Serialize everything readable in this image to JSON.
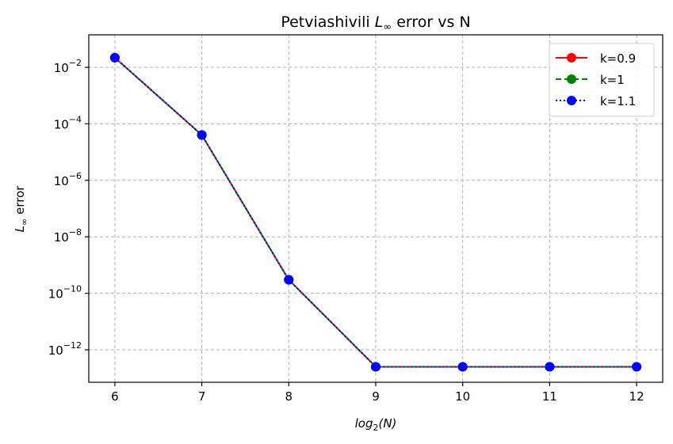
{
  "chart_data": {
    "type": "line",
    "title_prefix": "Petviashivili ",
    "title_math": "L",
    "title_math_sub": "∞",
    "title_suffix": " error vs N",
    "xlabel_base": "log",
    "xlabel_sub": "2",
    "xlabel_suffix": "(N)",
    "ylabel_math": "L",
    "ylabel_math_sub": "∞",
    "ylabel_suffix": " error",
    "yscale": "log",
    "xlim": [
      5.7,
      12.3
    ],
    "ylim_log10": [
      -13.15,
      -0.85
    ],
    "x": [
      6,
      7,
      8,
      9,
      10,
      11,
      12
    ],
    "x_ticks": [
      6,
      7,
      8,
      9,
      10,
      11,
      12
    ],
    "x_tick_labels": [
      "6",
      "7",
      "8",
      "9",
      "10",
      "11",
      "12"
    ],
    "y_tick_exponents": [
      -2,
      -4,
      -6,
      -8,
      -10,
      -12
    ],
    "y_tick_base": "10",
    "y_tick_labels": [
      "−2",
      "−4",
      "−6",
      "−8",
      "−10",
      "−12"
    ],
    "grid": true,
    "legend_position": "top-right",
    "series": [
      {
        "name": "k=0.9",
        "color": "#ff0000",
        "style": "solid",
        "marker": "circle",
        "values": [
          0.022,
          4e-05,
          3e-10,
          2.5e-13,
          2.5e-13,
          2.5e-13,
          2.5e-13
        ]
      },
      {
        "name": "k=1",
        "color": "#008000",
        "style": "dashed",
        "marker": "circle",
        "values": [
          0.022,
          4e-05,
          3e-10,
          2.5e-13,
          2.5e-13,
          2.5e-13,
          2.5e-13
        ]
      },
      {
        "name": "k=1.1",
        "color": "#0000ff",
        "style": "dotted",
        "marker": "circle",
        "values": [
          0.022,
          4e-05,
          3e-10,
          2.5e-13,
          2.5e-13,
          2.5e-13,
          2.5e-13
        ]
      }
    ]
  }
}
